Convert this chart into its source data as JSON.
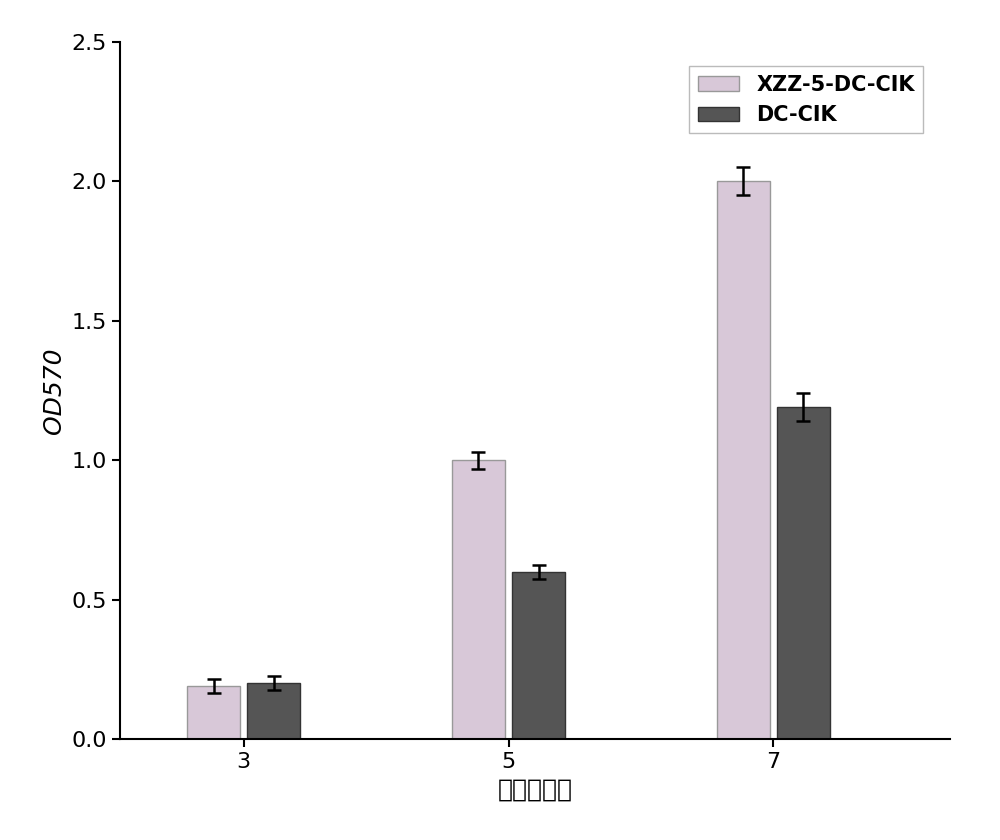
{
  "categories": [
    "3",
    "5",
    "7"
  ],
  "xzz_values": [
    0.19,
    1.0,
    2.0
  ],
  "dccik_values": [
    0.2,
    0.6,
    1.19
  ],
  "xzz_errors": [
    0.025,
    0.03,
    0.05
  ],
  "dccik_errors": [
    0.025,
    0.025,
    0.05
  ],
  "xzz_color": "#d8c8d8",
  "dccik_color": "#555555",
  "xzz_edge_color": "#999999",
  "dccik_edge_color": "#333333",
  "xlabel": "时间（天）",
  "ylabel": "OD570",
  "ylim": [
    0,
    2.5
  ],
  "yticks": [
    0.0,
    0.5,
    1.0,
    1.5,
    2.0,
    2.5
  ],
  "legend_labels": [
    "XZZ-5-DC-CIK",
    "DC-CIK"
  ],
  "bar_width": 0.3,
  "group_positions": [
    1.0,
    2.5,
    4.0
  ],
  "background_color": "#ffffff",
  "label_fontsize": 18,
  "tick_fontsize": 16,
  "legend_fontsize": 15
}
